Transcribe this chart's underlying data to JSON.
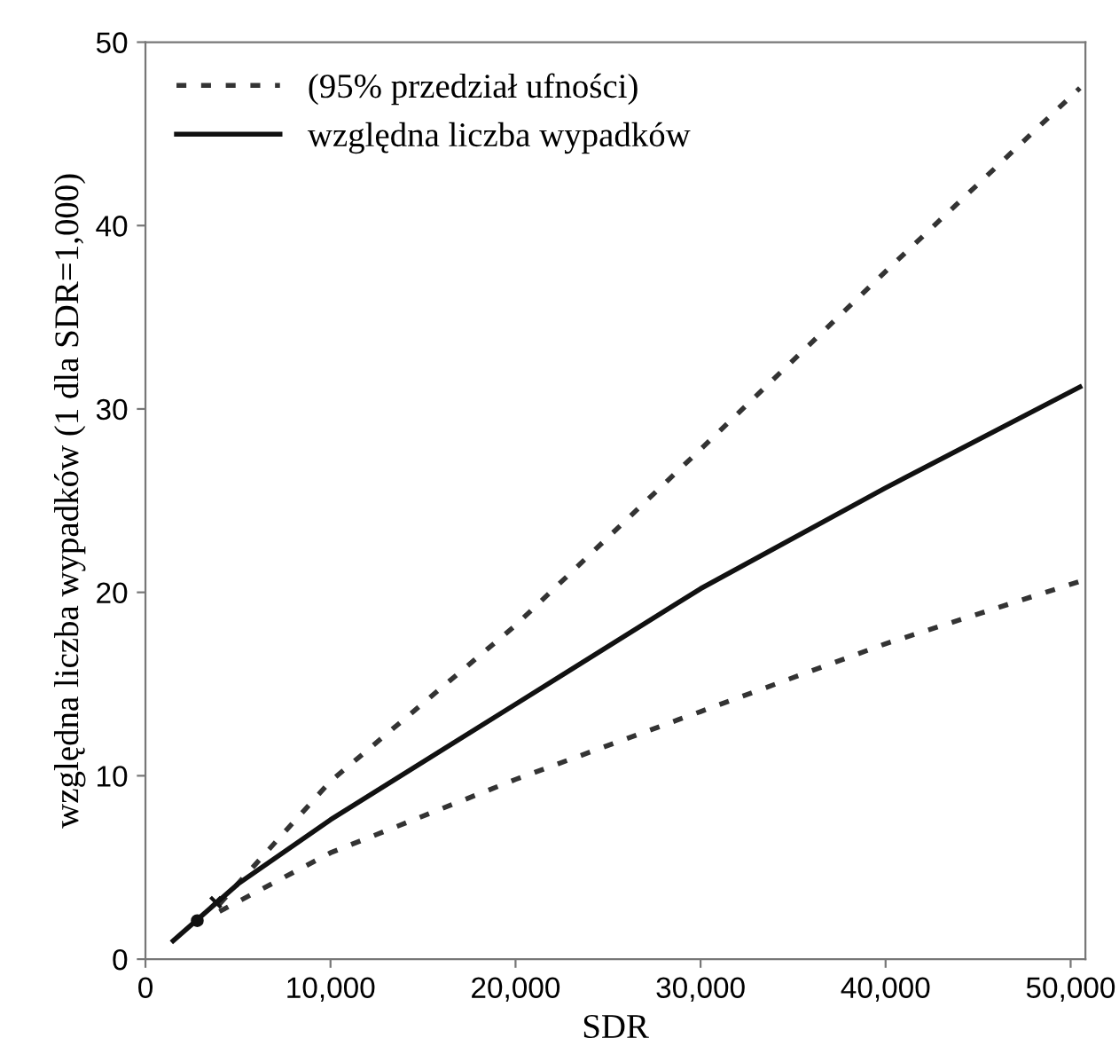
{
  "chart_data": {
    "type": "line",
    "xlabel": "SDR",
    "ylabel": "względna liczba wypadków (1 dla SDR=1,000)",
    "xlim": [
      0,
      50800
    ],
    "ylim": [
      0,
      50
    ],
    "xticks": [
      {
        "value": 0,
        "label": "0"
      },
      {
        "value": 10000,
        "label": "10,000"
      },
      {
        "value": 20000,
        "label": "20,000"
      },
      {
        "value": 30000,
        "label": "30,000"
      },
      {
        "value": 40000,
        "label": "40,000"
      },
      {
        "value": 50000,
        "label": "50,000"
      }
    ],
    "yticks": [
      0,
      10,
      20,
      30,
      40,
      50
    ],
    "grid": false,
    "legend": "top left",
    "series": [
      {
        "name": "(95% przedział ufności)",
        "color": "#333333",
        "line_style": "dotted",
        "x": [
          4000,
          10000,
          20000,
          30000,
          40000,
          50500
        ],
        "values": [
          3.0,
          9.7,
          18.2,
          27.8,
          37.5,
          47.5
        ]
      },
      {
        "name": "względna liczba wypadków",
        "color": "#111111",
        "line_style": "solid",
        "x": [
          1500,
          5000,
          10000,
          20000,
          30000,
          40000,
          50500
        ],
        "values": [
          1.0,
          4.1,
          7.6,
          13.9,
          20.2,
          25.7,
          31.2
        ]
      },
      {
        "color": "#333333",
        "line_style": "dotted",
        "x": [
          4000,
          10000,
          20000,
          30000,
          40000,
          50500
        ],
        "values": [
          2.6,
          5.8,
          9.8,
          13.5,
          17.2,
          20.6
        ]
      },
      {
        "type": "scatter",
        "color": "#111111",
        "marker": "circle",
        "x": [
          2800
        ],
        "values": [
          2.1
        ]
      },
      {
        "type": "scatter",
        "color": "#111111",
        "marker": "cross",
        "x": [
          3800
        ],
        "values": [
          3.1
        ]
      }
    ]
  }
}
